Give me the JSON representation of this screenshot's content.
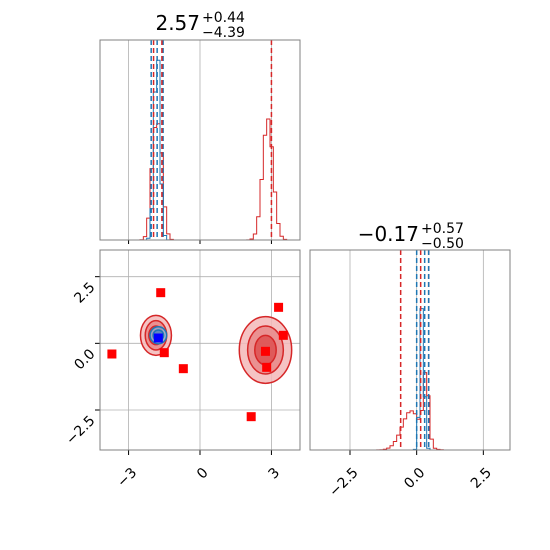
{
  "colors": {
    "red": "#d62728",
    "blue": "#1f77b4",
    "marker_red": "#ff0000",
    "marker_blue": "#0000ff",
    "grid": "#b0b0b0"
  },
  "chart_data": {
    "type": "corner",
    "params": [
      {
        "title_value": "2.57",
        "title_plus": "+0.44",
        "title_minus": "−4.39",
        "range": [
          -4.2,
          4.2
        ]
      },
      {
        "title_value": "−0.17",
        "title_plus": "+0.57",
        "title_minus": "−0.50",
        "range": [
          -4.0,
          3.5
        ]
      }
    ],
    "ticks": {
      "x0": [
        {
          "v": -3,
          "label": "−3"
        },
        {
          "v": 0,
          "label": "0"
        },
        {
          "v": 3,
          "label": "3"
        }
      ],
      "y1": [
        {
          "v": 2.5,
          "label": "2.5"
        },
        {
          "v": 0,
          "label": "0.0"
        },
        {
          "v": -2.5,
          "label": "−2.5"
        }
      ],
      "x1": [
        {
          "v": -2.5,
          "label": "−2.5"
        },
        {
          "v": 0,
          "label": "0.0"
        },
        {
          "v": 2.5,
          "label": "2.5"
        }
      ]
    },
    "hist1_lines": {
      "red": [
        -1.95,
        -1.6,
        3.0
      ],
      "blue": [
        -2.05,
        -1.8,
        -1.55
      ]
    },
    "hist2_lines": {
      "red": [
        -0.6,
        0.15,
        0.45
      ],
      "blue": [
        0.0,
        0.3,
        0.45
      ]
    },
    "hist1_red_modes": [
      {
        "mu": -1.8,
        "sigma": 0.18,
        "amp": 0.95
      },
      {
        "mu": 2.85,
        "sigma": 0.22,
        "amp": 0.62
      },
      {
        "mu": -1.8,
        "sigma": 0.12,
        "amp": -0.35
      }
    ],
    "hist1_blue_modes": [
      {
        "mu": -1.8,
        "sigma": 0.12,
        "amp": 1.0
      }
    ],
    "hist2_red_modes": [
      {
        "mu": -0.2,
        "sigma": 0.35,
        "amp": 0.2
      },
      {
        "mu": 0.35,
        "sigma": 0.1,
        "amp": 0.35
      }
    ],
    "hist2_blue_modes": [
      {
        "mu": 0.2,
        "sigma": 0.08,
        "amp": 0.73
      }
    ],
    "red_contours": [
      {
        "cx": -1.85,
        "cy": 0.3,
        "rx": [
          0.3,
          0.45,
          0.65
        ],
        "ry": [
          0.35,
          0.55,
          0.75
        ]
      },
      {
        "cx": 2.75,
        "cy": -0.25,
        "rx": [
          0.45,
          0.75,
          1.1
        ],
        "ry": [
          0.55,
          0.9,
          1.25
        ]
      }
    ],
    "blue_contour": {
      "cx": -1.75,
      "cy": 0.3,
      "rx": [
        0.22,
        0.35
      ],
      "ry": [
        0.2,
        0.32
      ]
    },
    "red_markers": [
      [
        -3.7,
        -0.4
      ],
      [
        -1.65,
        1.9
      ],
      [
        -1.5,
        -0.35
      ],
      [
        -0.7,
        -0.95
      ],
      [
        2.15,
        -2.75
      ],
      [
        2.75,
        -0.3
      ],
      [
        2.8,
        -0.9
      ],
      [
        3.3,
        1.35
      ],
      [
        3.5,
        0.3
      ]
    ],
    "blue_marker": [
      -1.75,
      0.2
    ]
  }
}
